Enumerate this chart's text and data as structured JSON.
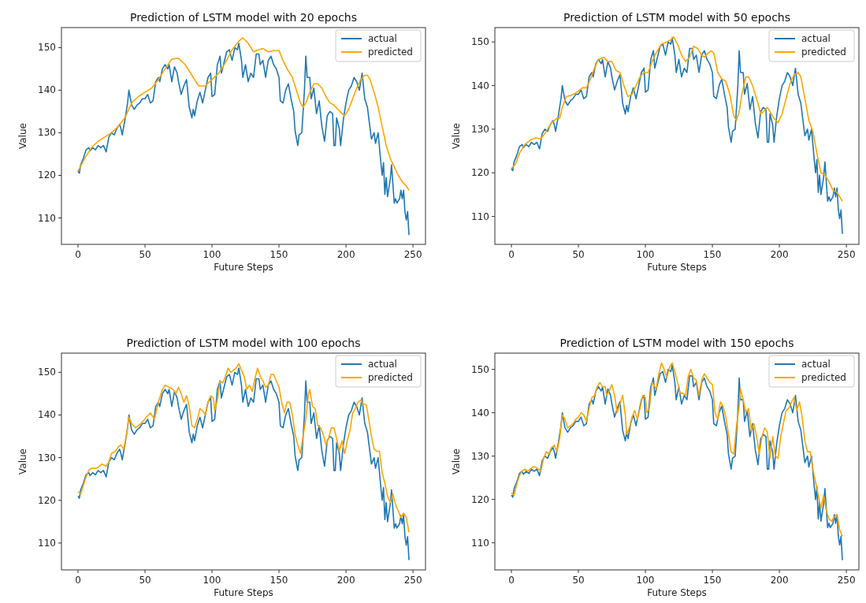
{
  "chart_data": [
    {
      "type": "line",
      "title": "Prediction of LSTM model with 20 epochs",
      "xlabel": "Future Steps",
      "ylabel": "Value",
      "xlim": [
        -12.35,
        259.35
      ],
      "ylim": [
        103.8,
        154.7
      ],
      "xticks": [
        0,
        50,
        100,
        150,
        200,
        250
      ],
      "yticks": [
        110,
        120,
        130,
        140,
        150
      ],
      "legend": "top right",
      "series": [
        {
          "name": "actual",
          "color": "#1f77b4",
          "x": [
            0,
            1,
            2,
            4,
            6,
            8,
            9,
            11,
            13,
            15,
            17,
            19,
            21,
            23,
            25,
            27,
            29,
            31,
            32,
            33,
            35,
            37,
            38,
            40,
            42,
            44,
            46,
            48,
            50,
            52,
            54,
            56,
            58,
            60,
            61,
            63,
            65,
            67,
            68,
            70,
            72,
            74,
            75,
            77,
            79,
            81,
            83,
            85,
            86,
            87,
            89,
            91,
            93,
            95,
            97,
            99,
            100,
            102,
            104,
            106,
            107,
            109,
            111,
            113,
            115,
            117,
            119,
            120,
            122,
            123,
            125,
            127,
            129,
            131,
            133,
            135,
            136,
            138,
            140,
            142,
            144,
            146,
            148,
            150,
            151,
            153,
            155,
            157,
            159,
            161,
            162,
            164,
            165,
            167,
            169,
            170,
            171,
            173,
            174,
            176,
            178,
            180,
            182,
            184,
            186,
            188,
            190,
            191,
            192,
            193,
            195,
            196,
            198,
            200,
            202,
            204,
            206,
            208,
            210,
            212,
            214,
            216,
            218,
            219,
            221,
            222,
            224,
            226,
            227,
            228,
            229,
            230,
            231,
            233,
            234,
            235,
            236,
            237,
            238,
            240,
            241,
            242,
            243,
            244,
            245,
            246,
            247
          ],
          "values": [
            121,
            120.5,
            122.5,
            124,
            126,
            126.5,
            125.8,
            126.5,
            126,
            127,
            126.5,
            127,
            125.5,
            129,
            130,
            129.5,
            131,
            132,
            131,
            129.5,
            133,
            137,
            140,
            136.5,
            135.5,
            136.5,
            137,
            138,
            138,
            139,
            137,
            137.5,
            142,
            143,
            142,
            145,
            146,
            145,
            146,
            142,
            145.5,
            144,
            142,
            139,
            141,
            142.5,
            136,
            133.5,
            135.5,
            134,
            137.5,
            139.5,
            137,
            140,
            143,
            144,
            138.5,
            139,
            146,
            148,
            144,
            146.5,
            149,
            149.5,
            147,
            150,
            149.5,
            151,
            147,
            143,
            146,
            142,
            144,
            143,
            148.5,
            148.5,
            146,
            147,
            143,
            147,
            148,
            146,
            145,
            143,
            137.5,
            137,
            140,
            141.5,
            138,
            135,
            130.5,
            127,
            129.5,
            130,
            140,
            148,
            143,
            143,
            138,
            140.5,
            134.5,
            137.5,
            131.5,
            128,
            134,
            135,
            134.5,
            127,
            127,
            133.5,
            131,
            127,
            133,
            137,
            140,
            141,
            143,
            142,
            140,
            144,
            138,
            136,
            131,
            128.5,
            130,
            127.5,
            130,
            123,
            120,
            123,
            115.5,
            119.5,
            115,
            119,
            122.5,
            118,
            113.5,
            114.5,
            113.5,
            114.5,
            116.5,
            114.5,
            116.5,
            111.5,
            109.5,
            111.5,
            106
          ]
        },
        {
          "name": "predicted",
          "color": "#ffa500",
          "x": [
            0,
            5,
            10,
            15,
            20,
            25,
            30,
            35,
            40,
            45,
            50,
            55,
            60,
            65,
            70,
            75,
            80,
            85,
            90,
            95,
            100,
            105,
            110,
            115,
            120,
            123,
            127,
            131,
            135,
            138,
            142,
            146,
            150,
            153,
            156,
            160,
            163,
            166,
            168,
            170,
            173,
            176,
            179,
            182,
            185,
            188,
            191,
            194,
            197,
            199,
            202,
            205,
            208,
            211,
            214,
            216,
            218,
            221,
            224,
            227,
            230,
            233,
            236,
            239,
            242,
            245,
            247
          ],
          "values": [
            121,
            124,
            126.5,
            128,
            129,
            130,
            131.5,
            133.5,
            137,
            138.5,
            139.5,
            140.5,
            142.5,
            145,
            147.3,
            147.5,
            146,
            143.5,
            141,
            141,
            142.5,
            144,
            146.5,
            149.5,
            151.5,
            152.3,
            151,
            149,
            149.5,
            149.8,
            149,
            149.3,
            149.3,
            147,
            145,
            143,
            140,
            137,
            136,
            137,
            139.5,
            141.5,
            141.5,
            140.5,
            138.5,
            137,
            136.5,
            135.5,
            134.5,
            134,
            135.5,
            138,
            140.5,
            142.5,
            143.5,
            143.5,
            142.5,
            139.5,
            136,
            131.5,
            127,
            124,
            122,
            120,
            118.5,
            117.5,
            116.5
          ]
        }
      ]
    },
    {
      "type": "line",
      "title": "Prediction of LSTM model with 50 epochs",
      "xlabel": "Future Steps",
      "ylabel": "Value",
      "xlim": [
        -12.35,
        259.35
      ],
      "ylim": [
        103.6,
        153.3
      ],
      "xticks": [
        0,
        50,
        100,
        150,
        200,
        250
      ],
      "yticks": [
        110,
        120,
        130,
        140,
        150
      ],
      "legend": "top right",
      "series": [
        {
          "name": "actual",
          "color": "#1f77b4",
          "x": [
            0,
            1,
            2,
            4,
            6,
            8,
            9,
            11,
            13,
            15,
            17,
            19,
            21,
            23,
            25,
            27,
            29,
            31,
            32,
            33,
            35,
            37,
            38,
            40,
            42,
            44,
            46,
            48,
            50,
            52,
            54,
            56,
            58,
            60,
            61,
            63,
            65,
            67,
            68,
            70,
            72,
            74,
            75,
            77,
            79,
            81,
            83,
            85,
            86,
            87,
            89,
            91,
            93,
            95,
            97,
            99,
            100,
            102,
            104,
            106,
            107,
            109,
            111,
            113,
            115,
            117,
            119,
            120,
            122,
            123,
            125,
            127,
            129,
            131,
            133,
            135,
            136,
            138,
            140,
            142,
            144,
            146,
            148,
            150,
            151,
            153,
            155,
            157,
            159,
            161,
            162,
            164,
            165,
            167,
            169,
            170,
            171,
            173,
            174,
            176,
            178,
            180,
            182,
            184,
            186,
            188,
            190,
            191,
            192,
            193,
            195,
            196,
            198,
            200,
            202,
            204,
            206,
            208,
            210,
            212,
            214,
            216,
            218,
            219,
            221,
            222,
            224,
            226,
            227,
            228,
            229,
            230,
            231,
            233,
            234,
            235,
            236,
            237,
            238,
            240,
            241,
            242,
            243,
            244,
            245,
            246,
            247
          ],
          "values": [
            121,
            120.5,
            122.5,
            124,
            126,
            126.5,
            125.8,
            126.5,
            126,
            127,
            126.5,
            127,
            125.5,
            129,
            130,
            129.5,
            131,
            132,
            131,
            129.5,
            133,
            137,
            140,
            136.5,
            135.5,
            136.5,
            137,
            138,
            138,
            139,
            137,
            137.5,
            142,
            143,
            142,
            145,
            146,
            145,
            146,
            142,
            145.5,
            144,
            142,
            139,
            141,
            142.5,
            136,
            133.5,
            135.5,
            134,
            137.5,
            139.5,
            137,
            140,
            143,
            144,
            138.5,
            139,
            146,
            148,
            144,
            146.5,
            149,
            149.5,
            147,
            150,
            149.5,
            151,
            147,
            143,
            146,
            142,
            144,
            143,
            148.5,
            148.5,
            146,
            147,
            143,
            147,
            148,
            146,
            145,
            143,
            137.5,
            137,
            140,
            141.5,
            138,
            135,
            130.5,
            127,
            129.5,
            130,
            140,
            148,
            143,
            143,
            138,
            140.5,
            134.5,
            137.5,
            131.5,
            128,
            134,
            135,
            134.5,
            127,
            127,
            133.5,
            131,
            127,
            133,
            137,
            140,
            141,
            143,
            142,
            140,
            144,
            138,
            136,
            131,
            128.5,
            130,
            127.5,
            130,
            123,
            120,
            123,
            115.5,
            119.5,
            115,
            119,
            122.5,
            118,
            113.5,
            114.5,
            113.5,
            114.5,
            116.5,
            114.5,
            116.5,
            111.5,
            109.5,
            111.5,
            106
          ]
        },
        {
          "name": "predicted",
          "color": "#ffa500",
          "x": [
            0,
            3,
            6,
            10,
            14,
            18,
            22,
            26,
            30,
            34,
            36,
            38,
            41,
            45,
            49,
            53,
            56,
            59,
            62,
            65,
            69,
            72,
            75,
            78,
            81,
            84,
            87,
            90,
            93,
            96,
            99,
            102,
            105,
            108,
            112,
            116,
            119,
            121,
            124,
            127,
            130,
            133,
            136,
            139,
            142,
            144,
            147,
            149,
            151,
            154,
            157,
            160,
            163,
            166,
            168,
            170,
            172,
            175,
            177,
            180,
            182,
            184,
            186,
            188,
            191,
            193,
            196,
            199,
            202,
            205,
            208,
            211,
            214,
            216,
            219,
            222,
            225,
            228,
            231,
            234,
            237,
            240,
            243,
            245,
            247
          ],
          "values": [
            121,
            122,
            124.5,
            126.5,
            127.5,
            128,
            127.8,
            129.5,
            131.5,
            132.5,
            132.5,
            135,
            137.5,
            137.8,
            138.5,
            139.5,
            139.5,
            141.5,
            144,
            146,
            146.5,
            145.5,
            145.5,
            143.5,
            143,
            140,
            137.5,
            138,
            140,
            142,
            143,
            143,
            145.5,
            147.5,
            149.5,
            150,
            150.5,
            151.2,
            149.5,
            147,
            145.5,
            146.5,
            149,
            148.5,
            147,
            146.5,
            147.5,
            148,
            147.5,
            143,
            141.5,
            141,
            138,
            133,
            132,
            134,
            138,
            142,
            142,
            140,
            138,
            136,
            133.5,
            134,
            135,
            134,
            132.5,
            131.5,
            133.5,
            137,
            140.5,
            142.5,
            143,
            142,
            137,
            132,
            129.5,
            124.5,
            120,
            119.5,
            118,
            116,
            115.5,
            114.5,
            113.5
          ]
        }
      ]
    },
    {
      "type": "line",
      "title": "Prediction of LSTM model with 100 epochs",
      "xlabel": "Future Steps",
      "ylabel": "Value",
      "xlim": [
        -12.35,
        259.35
      ],
      "ylim": [
        103.7,
        154.5
      ],
      "xticks": [
        0,
        50,
        100,
        150,
        200,
        250
      ],
      "yticks": [
        110,
        120,
        130,
        140,
        150
      ],
      "legend": "top right",
      "series": [
        {
          "name": "actual",
          "color": "#1f77b4",
          "x": [
            0,
            1,
            2,
            4,
            6,
            8,
            9,
            11,
            13,
            15,
            17,
            19,
            21,
            23,
            25,
            27,
            29,
            31,
            32,
            33,
            35,
            37,
            38,
            40,
            42,
            44,
            46,
            48,
            50,
            52,
            54,
            56,
            58,
            60,
            61,
            63,
            65,
            67,
            68,
            70,
            72,
            74,
            75,
            77,
            79,
            81,
            83,
            85,
            86,
            87,
            89,
            91,
            93,
            95,
            97,
            99,
            100,
            102,
            104,
            106,
            107,
            109,
            111,
            113,
            115,
            117,
            119,
            120,
            122,
            123,
            125,
            127,
            129,
            131,
            133,
            135,
            136,
            138,
            140,
            142,
            144,
            146,
            148,
            150,
            151,
            153,
            155,
            157,
            159,
            161,
            162,
            164,
            165,
            167,
            169,
            170,
            171,
            173,
            174,
            176,
            178,
            180,
            182,
            184,
            186,
            188,
            190,
            191,
            192,
            193,
            195,
            196,
            198,
            200,
            202,
            204,
            206,
            208,
            210,
            212,
            214,
            216,
            218,
            219,
            221,
            222,
            224,
            226,
            227,
            228,
            229,
            230,
            231,
            233,
            234,
            235,
            236,
            237,
            238,
            240,
            241,
            242,
            243,
            244,
            245,
            246,
            247
          ],
          "values": [
            121,
            120.5,
            122.5,
            124,
            126,
            126.5,
            125.8,
            126.5,
            126,
            127,
            126.5,
            127,
            125.5,
            129,
            130,
            129.5,
            131,
            132,
            131,
            129.5,
            133,
            137,
            140,
            136.5,
            135.5,
            136.5,
            137,
            138,
            138,
            139,
            137,
            137.5,
            142,
            143,
            142,
            145,
            146,
            145,
            146,
            142,
            145.5,
            144,
            142,
            139,
            141,
            142.5,
            136,
            133.5,
            135.5,
            134,
            137.5,
            139.5,
            137,
            140,
            143,
            144,
            138.5,
            139,
            146,
            148,
            144,
            146.5,
            149,
            149.5,
            147,
            150,
            149.5,
            151,
            147,
            143,
            146,
            142,
            144,
            143,
            148.5,
            148.5,
            146,
            147,
            143,
            147,
            148,
            146,
            145,
            143,
            137.5,
            137,
            140,
            141.5,
            138,
            135,
            130.5,
            127,
            129.5,
            130,
            140,
            148,
            143,
            143,
            138,
            140.5,
            134.5,
            137.5,
            131.5,
            128,
            134,
            135,
            134.5,
            127,
            127,
            133.5,
            131,
            127,
            133,
            137,
            140,
            141,
            143,
            142,
            140,
            144,
            138,
            136,
            131,
            128.5,
            130,
            127.5,
            130,
            123,
            120,
            123,
            115.5,
            119.5,
            115,
            119,
            122.5,
            118,
            113.5,
            114.5,
            113.5,
            114.5,
            116.5,
            114.5,
            116.5,
            111.5,
            109.5,
            111.5,
            106
          ]
        },
        {
          "name": "predicted",
          "color": "#ffa500",
          "x": [
            0,
            2,
            4,
            6,
            8,
            10,
            14,
            18,
            21,
            23,
            25,
            28,
            30,
            32,
            34,
            36,
            38,
            40,
            43,
            47,
            51,
            54,
            57,
            60,
            63,
            65,
            68,
            71,
            73,
            75,
            77,
            79,
            81,
            83,
            85,
            87,
            89,
            91,
            93,
            95,
            97,
            99,
            101,
            102,
            104,
            106,
            108,
            110,
            112,
            114,
            116,
            118,
            120,
            122,
            124,
            126,
            128,
            130,
            132,
            134,
            136,
            138,
            140,
            142,
            144,
            146,
            148,
            150,
            152,
            154,
            156,
            158,
            160,
            162,
            164,
            166,
            168,
            170,
            172,
            173,
            175,
            177,
            179,
            181,
            183,
            185,
            187,
            189,
            191,
            193,
            195,
            197,
            199,
            201,
            203,
            205,
            207,
            209,
            211,
            213,
            215,
            217,
            219,
            221,
            223,
            225,
            227,
            229,
            231,
            233,
            235,
            237,
            239,
            241,
            243,
            245,
            247
          ],
          "values": [
            122,
            121.5,
            123.5,
            125.5,
            127,
            127.5,
            127.5,
            128.5,
            128,
            129,
            131,
            131.5,
            132.5,
            133,
            132,
            135,
            139.5,
            138,
            137,
            138,
            139.5,
            140.5,
            139,
            143,
            146,
            147,
            146.5,
            146,
            145,
            146.5,
            145,
            143,
            144.5,
            142,
            137.5,
            137,
            139,
            141.5,
            141,
            140,
            143,
            144.5,
            144,
            141,
            143.5,
            148,
            147.5,
            149,
            151,
            150,
            150.5,
            151,
            152,
            150.5,
            149,
            146,
            147,
            145.5,
            148.5,
            151,
            149,
            148,
            146.5,
            147,
            149.5,
            149.5,
            148,
            146.5,
            143,
            140.5,
            143,
            143,
            140,
            135.5,
            133,
            131,
            135,
            139,
            145,
            146,
            142,
            141.5,
            137.5,
            137,
            135.5,
            133,
            134.5,
            137,
            137,
            134.5,
            131.5,
            134,
            131,
            134,
            136.5,
            140.5,
            141.5,
            143,
            143.5,
            142.5,
            142.5,
            139,
            135,
            132,
            131.5,
            131.5,
            126.5,
            124,
            121,
            119.5,
            121.5,
            119,
            117.5,
            116,
            117,
            116,
            112.5
          ]
        }
      ]
    },
    {
      "type": "line",
      "title": "Prediction of LSTM model with 150 epochs",
      "xlabel": "Future Steps",
      "ylabel": "Value",
      "xlim": [
        -12.35,
        259.35
      ],
      "ylim": [
        103.75,
        153.75
      ],
      "xticks": [
        0,
        50,
        100,
        150,
        200,
        250
      ],
      "yticks": [
        110,
        120,
        130,
        140,
        150
      ],
      "legend": "top right",
      "series": [
        {
          "name": "actual",
          "color": "#1f77b4",
          "x": [
            0,
            1,
            2,
            4,
            6,
            8,
            9,
            11,
            13,
            15,
            17,
            19,
            21,
            23,
            25,
            27,
            29,
            31,
            32,
            33,
            35,
            37,
            38,
            40,
            42,
            44,
            46,
            48,
            50,
            52,
            54,
            56,
            58,
            60,
            61,
            63,
            65,
            67,
            68,
            70,
            72,
            74,
            75,
            77,
            79,
            81,
            83,
            85,
            86,
            87,
            89,
            91,
            93,
            95,
            97,
            99,
            100,
            102,
            104,
            106,
            107,
            109,
            111,
            113,
            115,
            117,
            119,
            120,
            122,
            123,
            125,
            127,
            129,
            131,
            133,
            135,
            136,
            138,
            140,
            142,
            144,
            146,
            148,
            150,
            151,
            153,
            155,
            157,
            159,
            161,
            162,
            164,
            165,
            167,
            169,
            170,
            171,
            173,
            174,
            176,
            178,
            180,
            182,
            184,
            186,
            188,
            190,
            191,
            192,
            193,
            195,
            196,
            198,
            200,
            202,
            204,
            206,
            208,
            210,
            212,
            214,
            216,
            218,
            219,
            221,
            222,
            224,
            226,
            227,
            228,
            229,
            230,
            231,
            233,
            234,
            235,
            236,
            237,
            238,
            240,
            241,
            242,
            243,
            244,
            245,
            246,
            247
          ],
          "values": [
            121,
            120.5,
            122.5,
            124,
            126,
            126.5,
            125.8,
            126.5,
            126,
            127,
            126.5,
            127,
            125.5,
            129,
            130,
            129.5,
            131,
            132,
            131,
            129.5,
            133,
            137,
            140,
            136.5,
            135.5,
            136.5,
            137,
            138,
            138,
            139,
            137,
            137.5,
            142,
            143,
            142,
            145,
            146,
            145,
            146,
            142,
            145.5,
            144,
            142,
            139,
            141,
            142.5,
            136,
            133.5,
            135.5,
            134,
            137.5,
            139.5,
            137,
            140,
            143,
            144,
            138.5,
            139,
            146,
            148,
            144,
            146.5,
            149,
            149.5,
            147,
            150,
            149.5,
            151,
            147,
            143,
            146,
            142,
            144,
            143,
            148.5,
            148.5,
            146,
            147,
            143,
            147,
            148,
            146,
            145,
            143,
            137.5,
            137,
            140,
            141.5,
            138,
            135,
            130.5,
            127,
            129.5,
            130,
            140,
            148,
            143,
            143,
            138,
            140.5,
            134.5,
            137.5,
            131.5,
            128,
            134,
            135,
            134.5,
            127,
            127,
            133.5,
            131,
            127,
            133,
            137,
            140,
            141,
            143,
            142,
            140,
            144,
            138,
            136,
            131,
            128.5,
            130,
            127.5,
            130,
            123,
            120,
            123,
            115.5,
            119.5,
            115,
            119,
            122.5,
            118,
            113.5,
            114.5,
            113.5,
            114.5,
            116.5,
            114.5,
            116.5,
            111.5,
            109.5,
            111.5,
            106
          ]
        },
        {
          "name": "predicted",
          "color": "#ffa500",
          "x": [
            0,
            2,
            4,
            6,
            8,
            10,
            12,
            14,
            16,
            18,
            20,
            22,
            24,
            26,
            28,
            30,
            32,
            34,
            36,
            38,
            40,
            42,
            44,
            46,
            48,
            50,
            52,
            54,
            56,
            58,
            60,
            62,
            64,
            66,
            68,
            70,
            71,
            73,
            75,
            77,
            79,
            81,
            83,
            85,
            86,
            88,
            90,
            92,
            94,
            96,
            98,
            100,
            101,
            103,
            105,
            107,
            108,
            110,
            112,
            114,
            116,
            118,
            120,
            122,
            124,
            126,
            128,
            130,
            132,
            134,
            136,
            138,
            140,
            142,
            144,
            146,
            148,
            150,
            152,
            154,
            156,
            158,
            160,
            162,
            164,
            166,
            168,
            170,
            171,
            173,
            175,
            177,
            179,
            181,
            183,
            185,
            187,
            189,
            191,
            193,
            195,
            197,
            199,
            201,
            203,
            205,
            207,
            209,
            211,
            213,
            215,
            217,
            219,
            221,
            223,
            225,
            227,
            229,
            231,
            233,
            235,
            237,
            239,
            241,
            243,
            245,
            247
          ],
          "values": [
            121.5,
            121,
            123.5,
            125.5,
            126.5,
            127,
            126.5,
            127,
            127.5,
            127.5,
            127,
            126.5,
            129.5,
            131,
            130.5,
            132,
            132.5,
            131,
            134,
            139.5,
            138.5,
            136.5,
            137,
            137.5,
            138.5,
            139,
            140,
            139.5,
            138,
            141,
            143.5,
            144,
            146,
            147,
            146,
            146,
            144,
            145,
            146.5,
            144,
            140,
            142,
            144,
            139.5,
            135,
            136.5,
            139,
            140.5,
            138.5,
            141,
            144,
            143.5,
            140,
            141,
            147,
            146,
            145.5,
            149,
            151.5,
            150,
            148,
            150.5,
            151.5,
            149.5,
            147,
            144.5,
            144.5,
            144,
            148.5,
            150,
            148,
            147.5,
            144,
            147.5,
            149,
            148,
            147,
            146.5,
            140,
            138.5,
            142.5,
            141.5,
            139,
            135,
            131,
            130.5,
            137,
            141.5,
            145.5,
            143,
            140,
            141,
            136,
            137.5,
            134.5,
            130.5,
            134.5,
            136.5,
            135.5,
            129.5,
            134.5,
            130,
            129.5,
            134.5,
            137.5,
            140.5,
            141,
            142.5,
            143.5,
            140.5,
            142.5,
            139,
            133.5,
            131,
            131,
            127,
            124,
            121,
            118,
            121,
            117.5,
            115.5,
            115,
            116,
            116.5,
            113,
            111.5
          ]
        }
      ]
    }
  ]
}
